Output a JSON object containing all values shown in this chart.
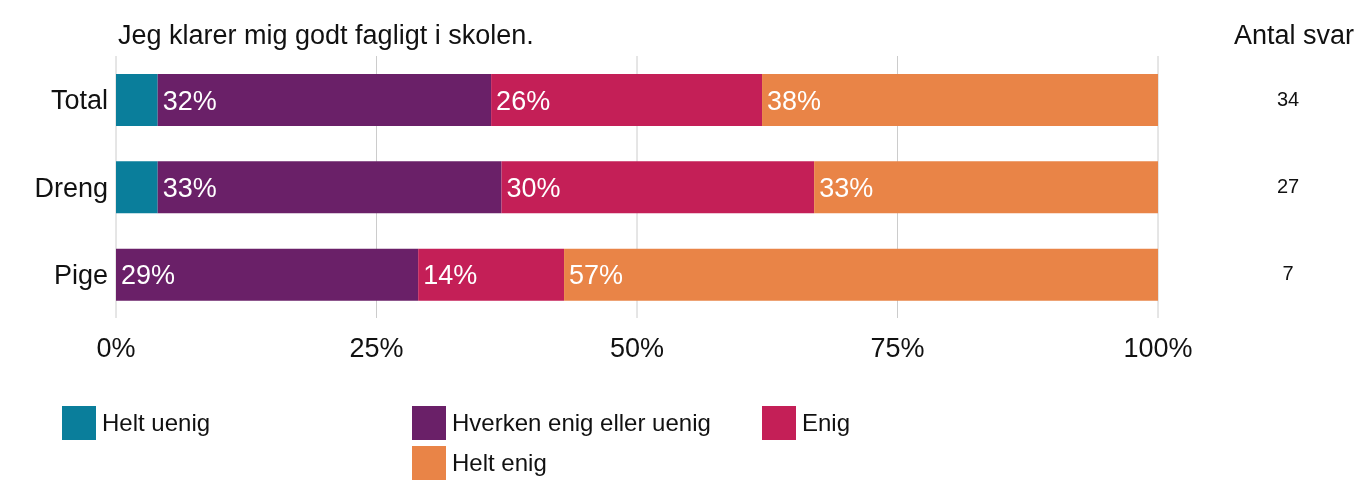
{
  "chart_data": {
    "type": "bar",
    "orientation": "horizontal",
    "stacked": true,
    "title": "Jeg klarer mig godt fagligt i skolen.",
    "categories": [
      "Total",
      "Dreng",
      "Pige"
    ],
    "series": [
      {
        "name": "Helt uenig",
        "color": "#0a7e9b",
        "values": [
          4,
          4,
          0
        ],
        "value_labels": [
          null,
          null,
          null
        ]
      },
      {
        "name": "Hverken enig eller uenig",
        "color": "#6a2068",
        "values": [
          32,
          33,
          29
        ],
        "value_labels": [
          "32%",
          "33%",
          "29%"
        ]
      },
      {
        "name": "Enig",
        "color": "#c41f57",
        "values": [
          26,
          30,
          14
        ],
        "value_labels": [
          "26%",
          "30%",
          "14%"
        ]
      },
      {
        "name": "Helt enig",
        "color": "#e98447",
        "values": [
          38,
          33,
          57
        ],
        "value_labels": [
          "38%",
          "33%",
          "57%"
        ]
      }
    ],
    "xlim": [
      0,
      100
    ],
    "xticks": [
      {
        "value": 0,
        "label": "0%"
      },
      {
        "value": 25,
        "label": "25%"
      },
      {
        "value": 50,
        "label": "50%"
      },
      {
        "value": 75,
        "label": "75%"
      },
      {
        "value": 100,
        "label": "100%"
      }
    ],
    "grid": "x",
    "legend": "bottom",
    "annotations": [
      "Antal svar",
      "34",
      "27",
      "7"
    ]
  }
}
